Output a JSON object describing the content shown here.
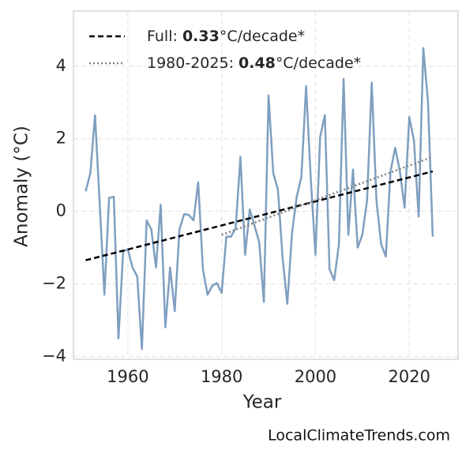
{
  "chart_data": {
    "type": "line",
    "xlabel": "Year",
    "ylabel": "Anomaly (°C)",
    "annotation": "LocalClimateTrends.com",
    "xlim": [
      1948.4,
      2030.4
    ],
    "ylim": [
      -4.08,
      5.52
    ],
    "xticks": [
      1960,
      1980,
      2000,
      2020
    ],
    "yticks": [
      {
        "value": -4,
        "label": "−4"
      },
      {
        "value": -2,
        "label": "−2"
      },
      0,
      2,
      4
    ],
    "grid": true,
    "legend": "upper left",
    "series": [
      {
        "color": "#7f9fc0",
        "style": "solid",
        "x": [
          1951,
          1952,
          1953,
          1954,
          1955,
          1956,
          1957,
          1958,
          1959,
          1960,
          1961,
          1962,
          1963,
          1964,
          1965,
          1966,
          1967,
          1968,
          1969,
          1970,
          1971,
          1972,
          1973,
          1974,
          1975,
          1976,
          1977,
          1978,
          1979,
          1980,
          1981,
          1982,
          1983,
          1984,
          1985,
          1986,
          1987,
          1988,
          1989,
          1990,
          1991,
          1992,
          1993,
          1994,
          1995,
          1996,
          1997,
          1998,
          1999,
          2000,
          2001,
          2002,
          2003,
          2004,
          2005,
          2006,
          2007,
          2008,
          2009,
          2010,
          2011,
          2012,
          2013,
          2014,
          2015,
          2016,
          2017,
          2018,
          2019,
          2020,
          2021,
          2022,
          2023,
          2024,
          2025
        ],
        "values": [
          0.55,
          1.05,
          2.65,
          0.2,
          -2.3,
          0.37,
          0.4,
          -3.5,
          -1.1,
          -1.05,
          -1.55,
          -1.8,
          -3.8,
          -0.25,
          -0.5,
          -1.55,
          0.18,
          -3.2,
          -1.55,
          -2.75,
          -0.5,
          -0.08,
          -0.1,
          -0.25,
          0.8,
          -1.6,
          -2.3,
          -2.05,
          -1.98,
          -2.25,
          -0.7,
          -0.7,
          -0.45,
          1.5,
          -1.2,
          0.05,
          -0.4,
          -0.85,
          -2.5,
          3.2,
          1.05,
          0.6,
          -1.3,
          -2.55,
          -0.6,
          0.4,
          0.95,
          3.45,
          0.9,
          -1.2,
          2.05,
          2.65,
          -1.6,
          -1.9,
          -0.9,
          3.65,
          -0.65,
          1.15,
          -1.0,
          -0.65,
          0.3,
          3.55,
          0.3,
          -0.9,
          -1.25,
          1.1,
          1.75,
          1.1,
          0.1,
          2.6,
          1.95,
          -0.15,
          4.5,
          3.0,
          -0.7
        ]
      },
      {
        "name": "Full: 0.33°C/decade*",
        "color": "#000000",
        "style": "dashed",
        "x": [
          1951,
          2025
        ],
        "values": [
          -1.35,
          1.1
        ]
      },
      {
        "name": "1980-2025: 0.48°C/decade*",
        "color": "#808080",
        "style": "dotted",
        "x": [
          1980,
          2025
        ],
        "values": [
          -0.65,
          1.5
        ]
      }
    ]
  }
}
